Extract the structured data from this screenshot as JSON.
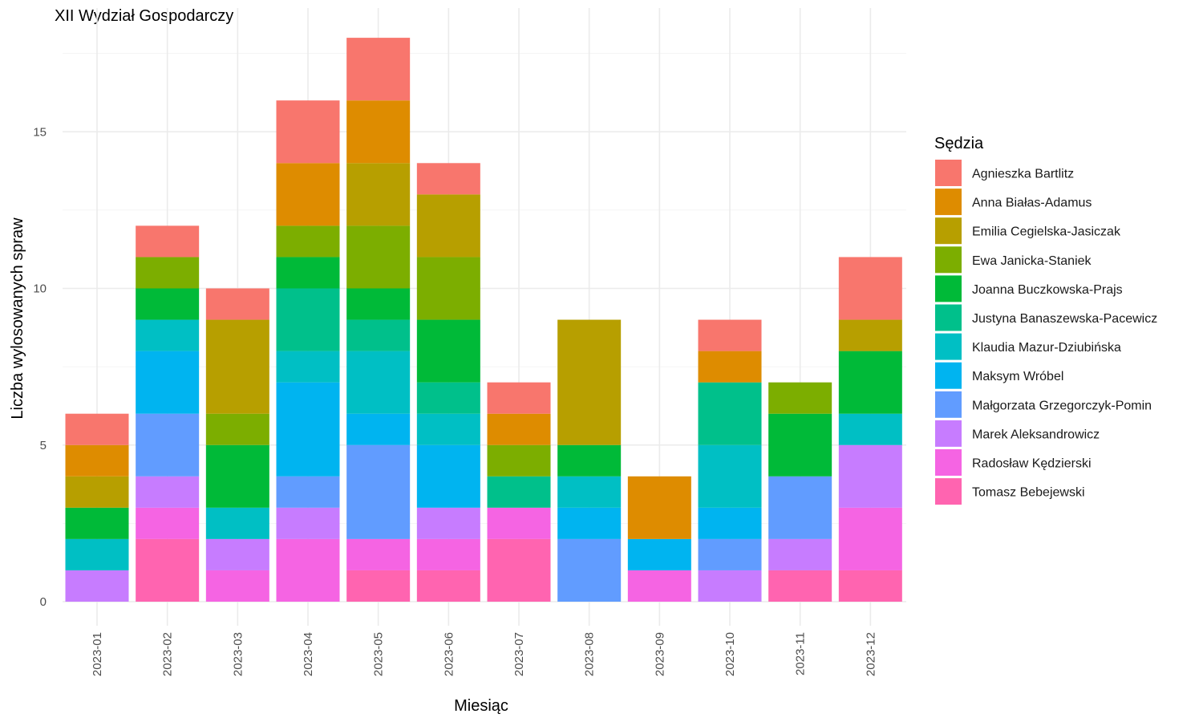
{
  "chart_data": {
    "type": "bar",
    "stacked": true,
    "title": "XII Wydział Gospodarczy",
    "xlabel": "Miesiąc",
    "ylabel": "Liczba wylosowanych spraw",
    "ylim": [
      0,
      18
    ],
    "yticks": [
      0,
      5,
      10,
      15
    ],
    "grid": true,
    "legend_title": "Sędzia",
    "legend_position": "right",
    "categories": [
      "2023-01",
      "2023-02",
      "2023-03",
      "2023-04",
      "2023-05",
      "2023-06",
      "2023-07",
      "2023-08",
      "2023-09",
      "2023-10",
      "2023-11",
      "2023-12"
    ],
    "series": [
      {
        "name": "Agnieszka Bartlitz",
        "color": "#F8766D",
        "values": [
          1,
          1,
          1,
          2,
          2,
          1,
          1,
          0,
          0,
          1,
          0,
          2
        ]
      },
      {
        "name": "Anna Białas-Adamus",
        "color": "#DE8C00",
        "values": [
          1,
          0,
          0,
          2,
          2,
          0,
          1,
          0,
          2,
          1,
          0,
          0
        ]
      },
      {
        "name": "Emilia Cegielska-Jasiczak",
        "color": "#B79F00",
        "values": [
          1,
          0,
          3,
          0,
          2,
          2,
          0,
          4,
          0,
          0,
          0,
          1
        ]
      },
      {
        "name": "Ewa Janicka-Staniek",
        "color": "#7CAE00",
        "values": [
          0,
          1,
          1,
          1,
          2,
          2,
          1,
          0,
          0,
          0,
          1,
          0
        ]
      },
      {
        "name": "Joanna Buczkowska-Prajs",
        "color": "#00BA38",
        "values": [
          1,
          1,
          2,
          1,
          1,
          2,
          0,
          1,
          0,
          0,
          2,
          2
        ]
      },
      {
        "name": "Justyna Banaszewska-Pacewicz",
        "color": "#00C08B",
        "values": [
          0,
          0,
          0,
          2,
          1,
          1,
          1,
          0,
          0,
          2,
          0,
          0
        ]
      },
      {
        "name": "Klaudia Mazur-Dziubińska",
        "color": "#00BFC4",
        "values": [
          1,
          1,
          1,
          1,
          2,
          1,
          0,
          1,
          0,
          2,
          0,
          1
        ]
      },
      {
        "name": "Maksym Wróbel",
        "color": "#00B4F0",
        "values": [
          0,
          2,
          0,
          3,
          1,
          2,
          0,
          1,
          1,
          1,
          0,
          0
        ]
      },
      {
        "name": "Małgorzata Grzegorczyk-Pomin",
        "color": "#619CFF",
        "values": [
          0,
          2,
          0,
          1,
          3,
          0,
          0,
          2,
          0,
          1,
          2,
          0
        ]
      },
      {
        "name": "Marek Aleksandrowicz",
        "color": "#C77CFF",
        "values": [
          1,
          1,
          1,
          1,
          0,
          1,
          0,
          0,
          0,
          1,
          1,
          2
        ]
      },
      {
        "name": "Radosław Kędzierski",
        "color": "#F564E3",
        "values": [
          0,
          1,
          1,
          2,
          1,
          1,
          1,
          0,
          1,
          0,
          0,
          2
        ]
      },
      {
        "name": "Tomasz Bebejewski",
        "color": "#FF64B0",
        "values": [
          0,
          2,
          0,
          0,
          1,
          1,
          2,
          0,
          0,
          0,
          1,
          1
        ]
      }
    ]
  }
}
